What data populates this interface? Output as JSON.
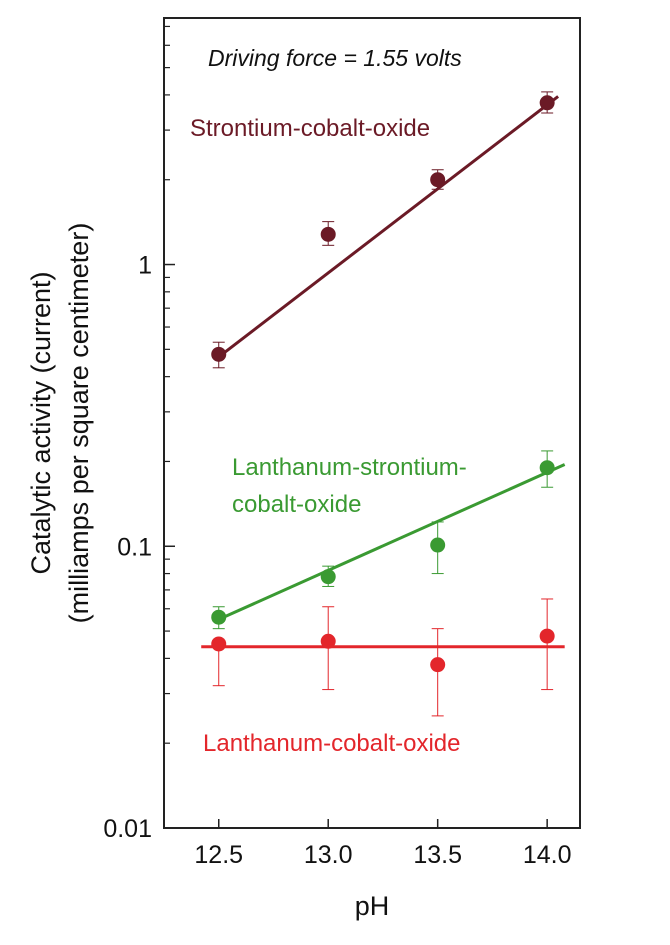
{
  "chart_data": {
    "type": "scatter",
    "annotation": "Driving force = 1.55 volts",
    "xlabel": "pH",
    "ylabel_line1": "Catalytic activity (current)",
    "ylabel_line2": "(milliamps per square centimeter)",
    "xlim": [
      12.25,
      14.15
    ],
    "ylim": [
      0.01,
      7.5
    ],
    "yscale": "log",
    "x_ticks": [
      12.5,
      13.0,
      13.5,
      14.0
    ],
    "x_tick_labels": [
      "12.5",
      "13.0",
      "13.5",
      "14.0"
    ],
    "y_ticks": [
      0.01,
      0.1,
      1
    ],
    "y_tick_labels": [
      "0.01",
      "0.1",
      "1"
    ],
    "grid": false,
    "series": [
      {
        "name": "Strontium-cobalt-oxide",
        "color": "#6b1a26",
        "x": [
          12.5,
          13.0,
          13.5,
          14.0
        ],
        "y": [
          0.48,
          1.28,
          2.0,
          3.75
        ],
        "err_low": [
          0.43,
          1.17,
          1.85,
          3.45
        ],
        "err_high": [
          0.53,
          1.42,
          2.17,
          4.1
        ],
        "fit_x": [
          12.5,
          14.05
        ],
        "fit_y": [
          0.47,
          3.95
        ]
      },
      {
        "name": "Lanthanum-strontium-cobalt-oxide",
        "name_line1": "Lanthanum-strontium-",
        "name_line2": "cobalt-oxide",
        "color": "#3a9a32",
        "x": [
          12.5,
          13.0,
          13.5,
          14.0
        ],
        "y": [
          0.056,
          0.078,
          0.101,
          0.19
        ],
        "err_low": [
          0.051,
          0.072,
          0.08,
          0.162
        ],
        "err_high": [
          0.061,
          0.085,
          0.122,
          0.218
        ],
        "fit_x": [
          12.5,
          14.08
        ],
        "fit_y": [
          0.055,
          0.195
        ]
      },
      {
        "name": "Lanthanum-cobalt-oxide",
        "color": "#e3262b",
        "x": [
          12.5,
          13.0,
          13.5,
          14.0
        ],
        "y": [
          0.045,
          0.046,
          0.038,
          0.048
        ],
        "err_low": [
          0.032,
          0.031,
          0.025,
          0.031
        ],
        "err_high": [
          0.045,
          0.061,
          0.051,
          0.065
        ],
        "fit_x": [
          12.42,
          14.08
        ],
        "fit_y": [
          0.044,
          0.044
        ]
      }
    ]
  }
}
